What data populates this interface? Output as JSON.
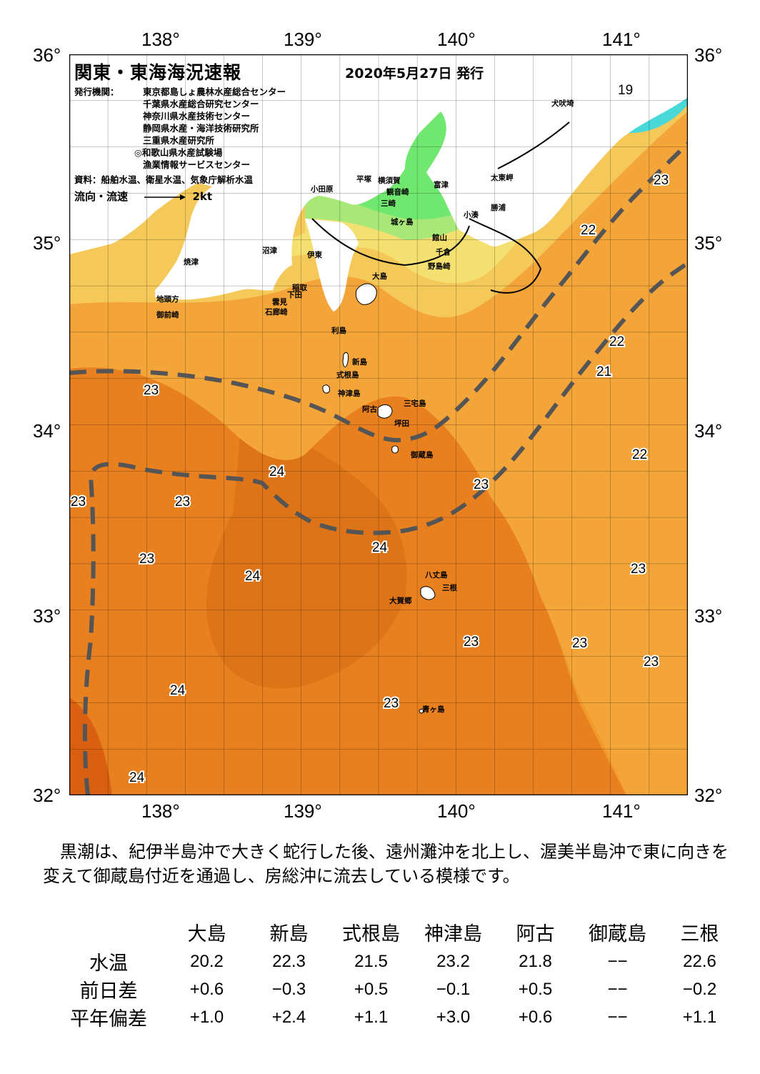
{
  "header": {
    "title": "関東・東海海況速報",
    "date": "2020年5月27日 発行"
  },
  "publishers": {
    "label": "発行機関：",
    "items": [
      "東京都島しょ農林水産総合センター",
      "千葉県水産総合研究センター",
      "神奈川県水産技術センター",
      "静岡県水産・海洋技術研究所",
      "三重県水産研究所",
      "◎和歌山県水産試験場",
      "漁業情報サービスセンター"
    ]
  },
  "source": "資料：船舶水温、衛星水温、気象庁解析水温",
  "legend": {
    "label": "流向・流速",
    "speed": "2kt"
  },
  "axes": {
    "lon_labels": [
      "138°",
      "139°",
      "140°",
      "141°"
    ],
    "lat_labels": [
      "36°",
      "35°",
      "34°",
      "33°",
      "32°"
    ]
  },
  "places": {
    "inubozaki": "犬吠埼",
    "taitomisaki": "太東岬",
    "katsuura": "勝浦",
    "kominato": "小湊",
    "futtsu": "富津",
    "tateyama": "館山",
    "chikura": "千倉",
    "nojimazaki": "野島崎",
    "yokosuka": "横須賀",
    "kannonzaki": "観音崎",
    "hiratsuka": "平塚",
    "odawara": "小田原",
    "jogashima": "城ヶ島",
    "misaki": "三崎",
    "numazu": "沼津",
    "ito": "伊東",
    "yaizu": "焼津",
    "inatori": "稲取",
    "shimoda": "下田",
    "mikomoto": "雲見",
    "irozaki": "石廊崎",
    "omaezaki": "御前崎",
    "chitokata": "地頭方",
    "oshima": "大島",
    "toshima": "利島",
    "niijima": "新島",
    "shikinejima": "式根島",
    "kozushima": "神津島",
    "miyakejima": "三宅島",
    "ako": "阿古",
    "tsubota": "坪田",
    "mikurajima": "御蔵島",
    "hachijojima": "八丈島",
    "mitsune": "三根",
    "okago": "大賀郷",
    "aogashima": "青ヶ島"
  },
  "temperature_labels": [
    "19",
    "22",
    "23",
    "23",
    "22",
    "21",
    "22",
    "23",
    "24",
    "23",
    "23",
    "23",
    "24",
    "24",
    "23",
    "23",
    "23",
    "23",
    "24",
    "23",
    "24"
  ],
  "description": "黒潮は、紀伊半島沖で大きく蛇行した後、遠州灘沖を北上し、渥美半島沖で東に向きを変えて御蔵島付近を通過し、房総沖に流去している模様です。",
  "observations": {
    "stations": [
      "大島",
      "新島",
      "式根島",
      "神津島",
      "阿古",
      "御蔵島",
      "三根"
    ],
    "rows": [
      {
        "label": "水温",
        "values": [
          "20.2",
          "22.3",
          "21.5",
          "23.2",
          "21.8",
          "−−",
          "22.6"
        ]
      },
      {
        "label": "前日差",
        "values": [
          "+0.6",
          "−0.3",
          "+0.5",
          "−0.1",
          "+0.5",
          "−−",
          "−0.2"
        ]
      },
      {
        "label": "平年偏差",
        "values": [
          "+1.0",
          "+2.4",
          "+1.1",
          "+3.0",
          "+0.6",
          "−−",
          "+1.1"
        ]
      }
    ]
  },
  "colors": {
    "land": "#ffffff",
    "sea_19": "#48d8d8",
    "sea_20": "#70e870",
    "sea_21": "#a8e878",
    "sea_22": "#f4e070",
    "sea_23": "#f6a830",
    "sea_24": "#e88020",
    "sea_25": "#d86010",
    "kuroshio_axis": "#555555"
  }
}
